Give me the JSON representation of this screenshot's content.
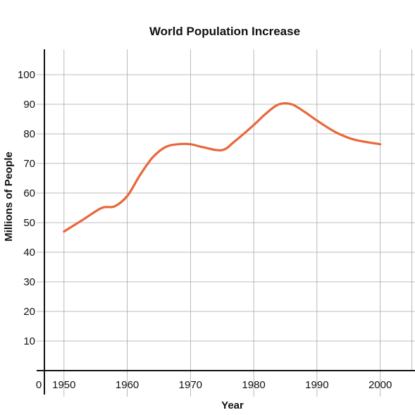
{
  "chart_data": {
    "type": "line",
    "title": "World Population Increase",
    "xlabel": "Year",
    "ylabel": "Millions of People",
    "origin_label": "0",
    "x_ticks": [
      "1950",
      "1960",
      "1970",
      "1980",
      "1990",
      "2000"
    ],
    "y_ticks": [
      "10",
      "20",
      "30",
      "40",
      "50",
      "60",
      "70",
      "80",
      "90",
      "100"
    ],
    "xlim": [
      1946.9,
      2005.5
    ],
    "ylim": [
      0,
      110
    ],
    "grid": true,
    "colors": {
      "line": "#e8683a",
      "axis": "#111111",
      "grid": "#a8a8a8"
    },
    "series": [
      {
        "x": [
          1950,
          1953,
          1956,
          1958,
          1960,
          1962,
          1964,
          1966,
          1968,
          1970,
          1972,
          1975,
          1977,
          1980,
          1982,
          1984,
          1986,
          1988,
          1990,
          1993,
          1996,
          2000
        ],
        "values": [
          47,
          51,
          55,
          55.5,
          59,
          66,
          72,
          75.5,
          76.5,
          76.5,
          75.5,
          74.5,
          77.5,
          83,
          87,
          90,
          90,
          87.5,
          84.5,
          80.5,
          78,
          76.5
        ]
      }
    ]
  }
}
